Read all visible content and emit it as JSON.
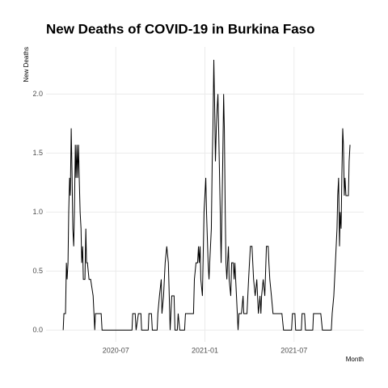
{
  "chart_data": {
    "type": "line",
    "title": "New Deaths of COVID-19 in Burkina Faso",
    "x_label": "Month",
    "y_label": "New Deaths",
    "color": "#000000",
    "grid": true,
    "xlim": [
      2020.109,
      2021.891
    ],
    "xticks": [
      {
        "value": 2020.5,
        "label": "2020-07"
      },
      {
        "value": 2021.0,
        "label": "2021-01"
      },
      {
        "value": 2021.5,
        "label": "2021-07"
      }
    ],
    "ylim": [
      -0.1,
      2.4
    ],
    "yticks": [
      {
        "value": 0,
        "label": "0.0"
      },
      {
        "value": 0.5,
        "label": "0.5"
      },
      {
        "value": 1,
        "label": "1.0"
      },
      {
        "value": 1.5,
        "label": "1.5"
      },
      {
        "value": 2,
        "label": "2.0"
      }
    ],
    "x": [
      2020.205,
      2020.209,
      2020.218,
      2020.223,
      2020.227,
      2020.232,
      2020.236,
      2020.241,
      2020.245,
      2020.25,
      2020.255,
      2020.259,
      2020.264,
      2020.268,
      2020.273,
      2020.277,
      2020.282,
      2020.286,
      2020.291,
      2020.295,
      2020.3,
      2020.305,
      2020.309,
      2020.314,
      2020.318,
      2020.327,
      2020.332,
      2020.336,
      2020.341,
      2020.35,
      2020.359,
      2020.373,
      2020.382,
      2020.386,
      2020.418,
      2020.423,
      2020.591,
      2020.595,
      2020.609,
      2020.614,
      2020.627,
      2020.641,
      2020.645,
      2020.682,
      2020.686,
      2020.7,
      2020.705,
      2020.732,
      2020.736,
      2020.745,
      2020.755,
      2020.759,
      2020.768,
      2020.777,
      2020.786,
      2020.795,
      2020.8,
      2020.805,
      2020.814,
      2020.827,
      2020.832,
      2020.845,
      2020.85,
      2020.859,
      2020.886,
      2020.891,
      2020.905,
      2020.936,
      2020.941,
      2020.95,
      2020.959,
      2020.964,
      2020.968,
      2020.973,
      2020.977,
      2020.986,
      2020.995,
      2021.005,
      2021.009,
      2021.018,
      2021.023,
      2021.027,
      2021.036,
      2021.041,
      2021.045,
      2021.05,
      2021.055,
      2021.059,
      2021.064,
      2021.068,
      2021.073,
      2021.077,
      2021.086,
      2021.091,
      2021.1,
      2021.105,
      2021.109,
      2021.114,
      2021.118,
      2021.123,
      2021.127,
      2021.132,
      2021.136,
      2021.145,
      2021.15,
      2021.159,
      2021.164,
      2021.168,
      2021.177,
      2021.186,
      2021.191,
      2021.205,
      2021.214,
      2021.218,
      2021.236,
      2021.245,
      2021.255,
      2021.264,
      2021.273,
      2021.282,
      2021.291,
      2021.3,
      2021.309,
      2021.314,
      2021.318,
      2021.327,
      2021.336,
      2021.345,
      2021.355,
      2021.359,
      2021.364,
      2021.373,
      2021.382,
      2021.432,
      2021.441,
      2021.486,
      2021.491,
      2021.505,
      2021.509,
      2021.541,
      2021.545,
      2021.559,
      2021.564,
      2021.605,
      2021.609,
      2021.65,
      2021.659,
      2021.709,
      2021.714,
      2021.723,
      2021.732,
      2021.741,
      2021.745,
      2021.75,
      2021.755,
      2021.759,
      2021.764,
      2021.768,
      2021.773,
      2021.777,
      2021.782,
      2021.786,
      2021.791,
      2021.805,
      2021.809,
      2021.814
    ],
    "values": [
      0,
      0.14,
      0.14,
      0.57,
      0.43,
      0.57,
      1.0,
      1.29,
      1.14,
      1.71,
      1.29,
      0.86,
      0.71,
      1.0,
      1.57,
      1.29,
      1.57,
      1.29,
      1.57,
      1.29,
      1.0,
      0.86,
      0.57,
      0.71,
      0.43,
      0.43,
      0.86,
      0.57,
      0.57,
      0.43,
      0.43,
      0.29,
      0,
      0.14,
      0.14,
      0,
      0,
      0.14,
      0.14,
      0,
      0.14,
      0.14,
      0,
      0,
      0.14,
      0.14,
      0,
      0,
      0.14,
      0.29,
      0.43,
      0.14,
      0.29,
      0.57,
      0.71,
      0.57,
      0.29,
      0,
      0.29,
      0.29,
      0,
      0,
      0.14,
      0,
      0,
      0.14,
      0.14,
      0.14,
      0.43,
      0.57,
      0.57,
      0.71,
      0.57,
      0.71,
      0.43,
      0.29,
      1.0,
      1.29,
      1.0,
      0.57,
      0.43,
      0.57,
      0.86,
      1.43,
      1.71,
      2.29,
      1.86,
      1.43,
      1.71,
      1.86,
      2.0,
      1.71,
      1.0,
      0.57,
      1.43,
      2.0,
      1.71,
      1.0,
      0.57,
      0.43,
      0.57,
      0.71,
      0.43,
      0.29,
      0.57,
      0.57,
      0.43,
      0.57,
      0.29,
      0,
      0.14,
      0.14,
      0.29,
      0.14,
      0.14,
      0.43,
      0.71,
      0.71,
      0.43,
      0.29,
      0.43,
      0.14,
      0.29,
      0.14,
      0.29,
      0.43,
      0.29,
      0.71,
      0.71,
      0.57,
      0.43,
      0.29,
      0.14,
      0.14,
      0,
      0,
      0.14,
      0.14,
      0,
      0,
      0.14,
      0.14,
      0,
      0,
      0.14,
      0.14,
      0,
      0,
      0.14,
      0.29,
      0.57,
      0.86,
      1.14,
      1.29,
      0.71,
      1.0,
      0.86,
      1.29,
      1.71,
      1.57,
      1.14,
      1.29,
      1.14,
      1.14,
      1.43,
      1.57
    ]
  }
}
